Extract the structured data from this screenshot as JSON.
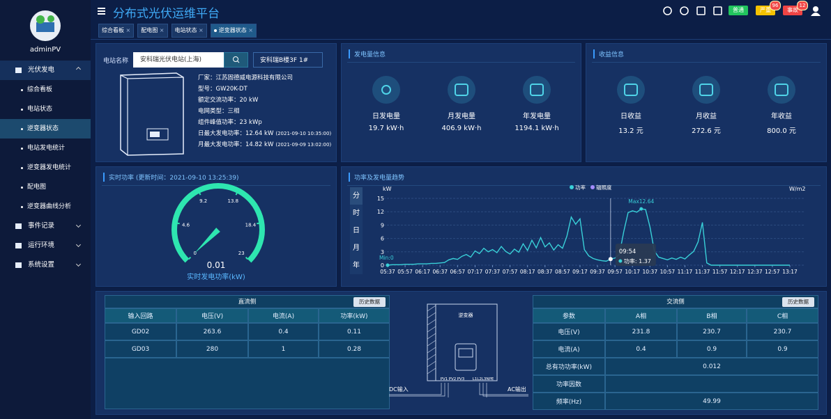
{
  "sidebar": {
    "user": "adminPV",
    "menu": [
      {
        "label": "光伏发电",
        "children": [
          "综合看板",
          "电站状态",
          "逆变器状态",
          "电站发电统计",
          "逆变器发电统计",
          "配电图",
          "逆变器曲线分析"
        ]
      },
      {
        "label": "事件记录"
      },
      {
        "label": "运行环境"
      },
      {
        "label": "系统设置"
      }
    ]
  },
  "header": {
    "title": "分布式光伏运维平台",
    "tabs": [
      "综合看板",
      "配电图",
      "电站状态",
      "逆变器状态"
    ],
    "buttons": [
      {
        "label": "普通",
        "color": "#22c55e"
      },
      {
        "label": "严重",
        "color": "#f5c200",
        "badge": 96
      },
      {
        "label": "事故",
        "color": "#ef4444",
        "badge": 12
      }
    ]
  },
  "station": {
    "label": "电站名称",
    "station_select": "安科瑞光伏电站(上海)",
    "inverter_select": "安科瑞B楼3F 1#",
    "info": [
      {
        "text": "厂家：江苏固德威电源科技有限公司"
      },
      {
        "text": "型号：GW20K-DT"
      },
      {
        "text": "额定交流功率：20 kW"
      },
      {
        "text": "电网类型：三相"
      },
      {
        "text": "组件峰值功率：23 kWp"
      },
      {
        "text": "日最大发电功率：12.64 kW",
        "note": "(2021-09-10 10:35:00)"
      },
      {
        "text": "月最大发电功率：14.82 kW",
        "note": "(2021-09-09 13:02:00)"
      }
    ]
  },
  "generation": {
    "title": "发电量信息",
    "items": [
      {
        "label": "日发电量",
        "value": "19.7 kW·h"
      },
      {
        "label": "月发电量",
        "value": "406.9 kW·h"
      },
      {
        "label": "年发电量",
        "value": "1194.1 kW·h"
      }
    ]
  },
  "revenue": {
    "title": "收益信息",
    "items": [
      {
        "label": "日收益",
        "value": "13.2 元"
      },
      {
        "label": "月收益",
        "value": "272.6 元"
      },
      {
        "label": "年收益",
        "value": "800.0 元"
      }
    ]
  },
  "realtime": {
    "title": "实时功率 (更新时间：2021-09-10 13:25:39)"
  },
  "trend": {
    "side_tabs": [
      "分",
      "时",
      "日",
      "月",
      "年"
    ]
  },
  "chart_data": [
    {
      "type": "gauge",
      "range": [
        0,
        23
      ],
      "ticks": [
        0,
        4.6,
        9.2,
        13.8,
        18.4,
        23
      ],
      "value": 0.01,
      "label": "实时发电功率(kW)",
      "color": "#2ee6b0"
    },
    {
      "type": "line",
      "title": "功率及发电量趋势",
      "y_label": "kW",
      "y2_label": "W/m2",
      "categories": [
        "05:37",
        null,
        null,
        null,
        "05:57",
        null,
        null,
        null,
        "06:17",
        null,
        null,
        null,
        "06:37",
        null,
        null,
        null,
        "06:57",
        null,
        null,
        null,
        "07:17",
        null,
        null,
        null,
        "07:37",
        null,
        null,
        null,
        "07:57",
        null,
        null,
        null,
        "08:17",
        null,
        null,
        null,
        "08:37",
        null,
        null,
        null,
        "08:57",
        null,
        null,
        null,
        "09:17",
        null,
        null,
        null,
        "09:37",
        null,
        null,
        null,
        "09:57",
        null,
        null,
        null,
        "10:17",
        null,
        null,
        null,
        "10:37",
        null,
        null,
        null,
        "10:57",
        null,
        null,
        null,
        "11:17",
        null,
        null,
        null,
        "11:37",
        null,
        null,
        null,
        "11:57",
        null,
        null,
        null,
        "12:17",
        null,
        null,
        null,
        "12:37",
        null,
        null,
        null,
        "12:57",
        null,
        null,
        null,
        "13:17"
      ],
      "series": [
        {
          "name": "功率",
          "color": "#39d0d8",
          "values": [
            0,
            0.1,
            0.1,
            0.1,
            0.2,
            0.2,
            0.2,
            0.3,
            0.3,
            0.3,
            0.4,
            0.4,
            0.5,
            0.6,
            1.2,
            1.5,
            1.3,
            2.0,
            2.4,
            1.8,
            3.2,
            2.6,
            3.8,
            3.0,
            3.5,
            2.8,
            4.2,
            3.1,
            2.5,
            3.6,
            2.9,
            4.8,
            3.3,
            5.6,
            3.9,
            6.2,
            4.1,
            5.0,
            3.4,
            4.6,
            3.8,
            6.5,
            10.8,
            9.2,
            10.4,
            3.5,
            2.1,
            1.5,
            1.2,
            1.0,
            0.9,
            1.37,
            1.6,
            2.4,
            7.5,
            11.8,
            12.2,
            11.9,
            12.64,
            12.5,
            8.6,
            3.2,
            1.8,
            1.5,
            1.2,
            1.6,
            1.3,
            1.8,
            1.4,
            2.3,
            3.1,
            5.2,
            9.6,
            0.5,
            0,
            0,
            0,
            0,
            0,
            0,
            0,
            0,
            0,
            0,
            0,
            0,
            0,
            0,
            0,
            0,
            0,
            0,
            0
          ]
        },
        {
          "name": "辐照度",
          "color": "#a58cff",
          "axis": "y2",
          "values": [
            null,
            null,
            null,
            null,
            null,
            null,
            null,
            null,
            null,
            null,
            null,
            null,
            null,
            null,
            null,
            null,
            null,
            null,
            null,
            null,
            null,
            null,
            null,
            null,
            null,
            null,
            null,
            null,
            null,
            null,
            null,
            null,
            null,
            null,
            null,
            null,
            null,
            null,
            null,
            null,
            null,
            null,
            null,
            null,
            null,
            null,
            null,
            null,
            null,
            null,
            null,
            null,
            null,
            null,
            null,
            null,
            null,
            null,
            null,
            null,
            null,
            null,
            null,
            null,
            null,
            null,
            null,
            null,
            null,
            null,
            null,
            null,
            null,
            null,
            null,
            null,
            null,
            null,
            null,
            null,
            null,
            null,
            null,
            null,
            null,
            null,
            null,
            null,
            null,
            null,
            null,
            null,
            null
          ]
        }
      ],
      "ylim": [
        0,
        15
      ],
      "yticks": [
        0,
        3,
        6,
        9,
        12,
        15
      ],
      "grid": true,
      "min_label": "Min:0",
      "max_label": "Max12.64",
      "tooltip_time": "09:54",
      "tooltip_text": "功率: 1.37"
    }
  ],
  "dc_table": {
    "title": "直流侧",
    "button": "历史数据",
    "headers": [
      "输入回路",
      "电压(V)",
      "电流(A)",
      "功率(kW)"
    ],
    "rows": [
      [
        "GD02",
        263.6,
        0.4,
        0.11
      ],
      [
        "GD03",
        280,
        1,
        0.28
      ]
    ]
  },
  "ac_table": {
    "title": "交流侧",
    "button": "历史数据",
    "headers": [
      "参数",
      "A相",
      "B相",
      "C相"
    ],
    "rows": [
      [
        "电压(V)",
        231.8,
        230.7,
        230.7
      ],
      [
        "电流(A)",
        0.4,
        0.9,
        0.9
      ]
    ],
    "merged_rows": [
      {
        "label": "总有功功率(kW)",
        "value": 0.012
      },
      {
        "label": "功率因数"
      },
      {
        "label": "频率(Hz)",
        "value": 49.99
      }
    ]
  },
  "diagram": {
    "device": "逆变器",
    "dc_label": "DC输入",
    "ac_label": "AC输出",
    "pv_ports": [
      "PV1",
      "PV2",
      "PV3"
    ],
    "ac_ports": "L1L2L3NPE"
  }
}
